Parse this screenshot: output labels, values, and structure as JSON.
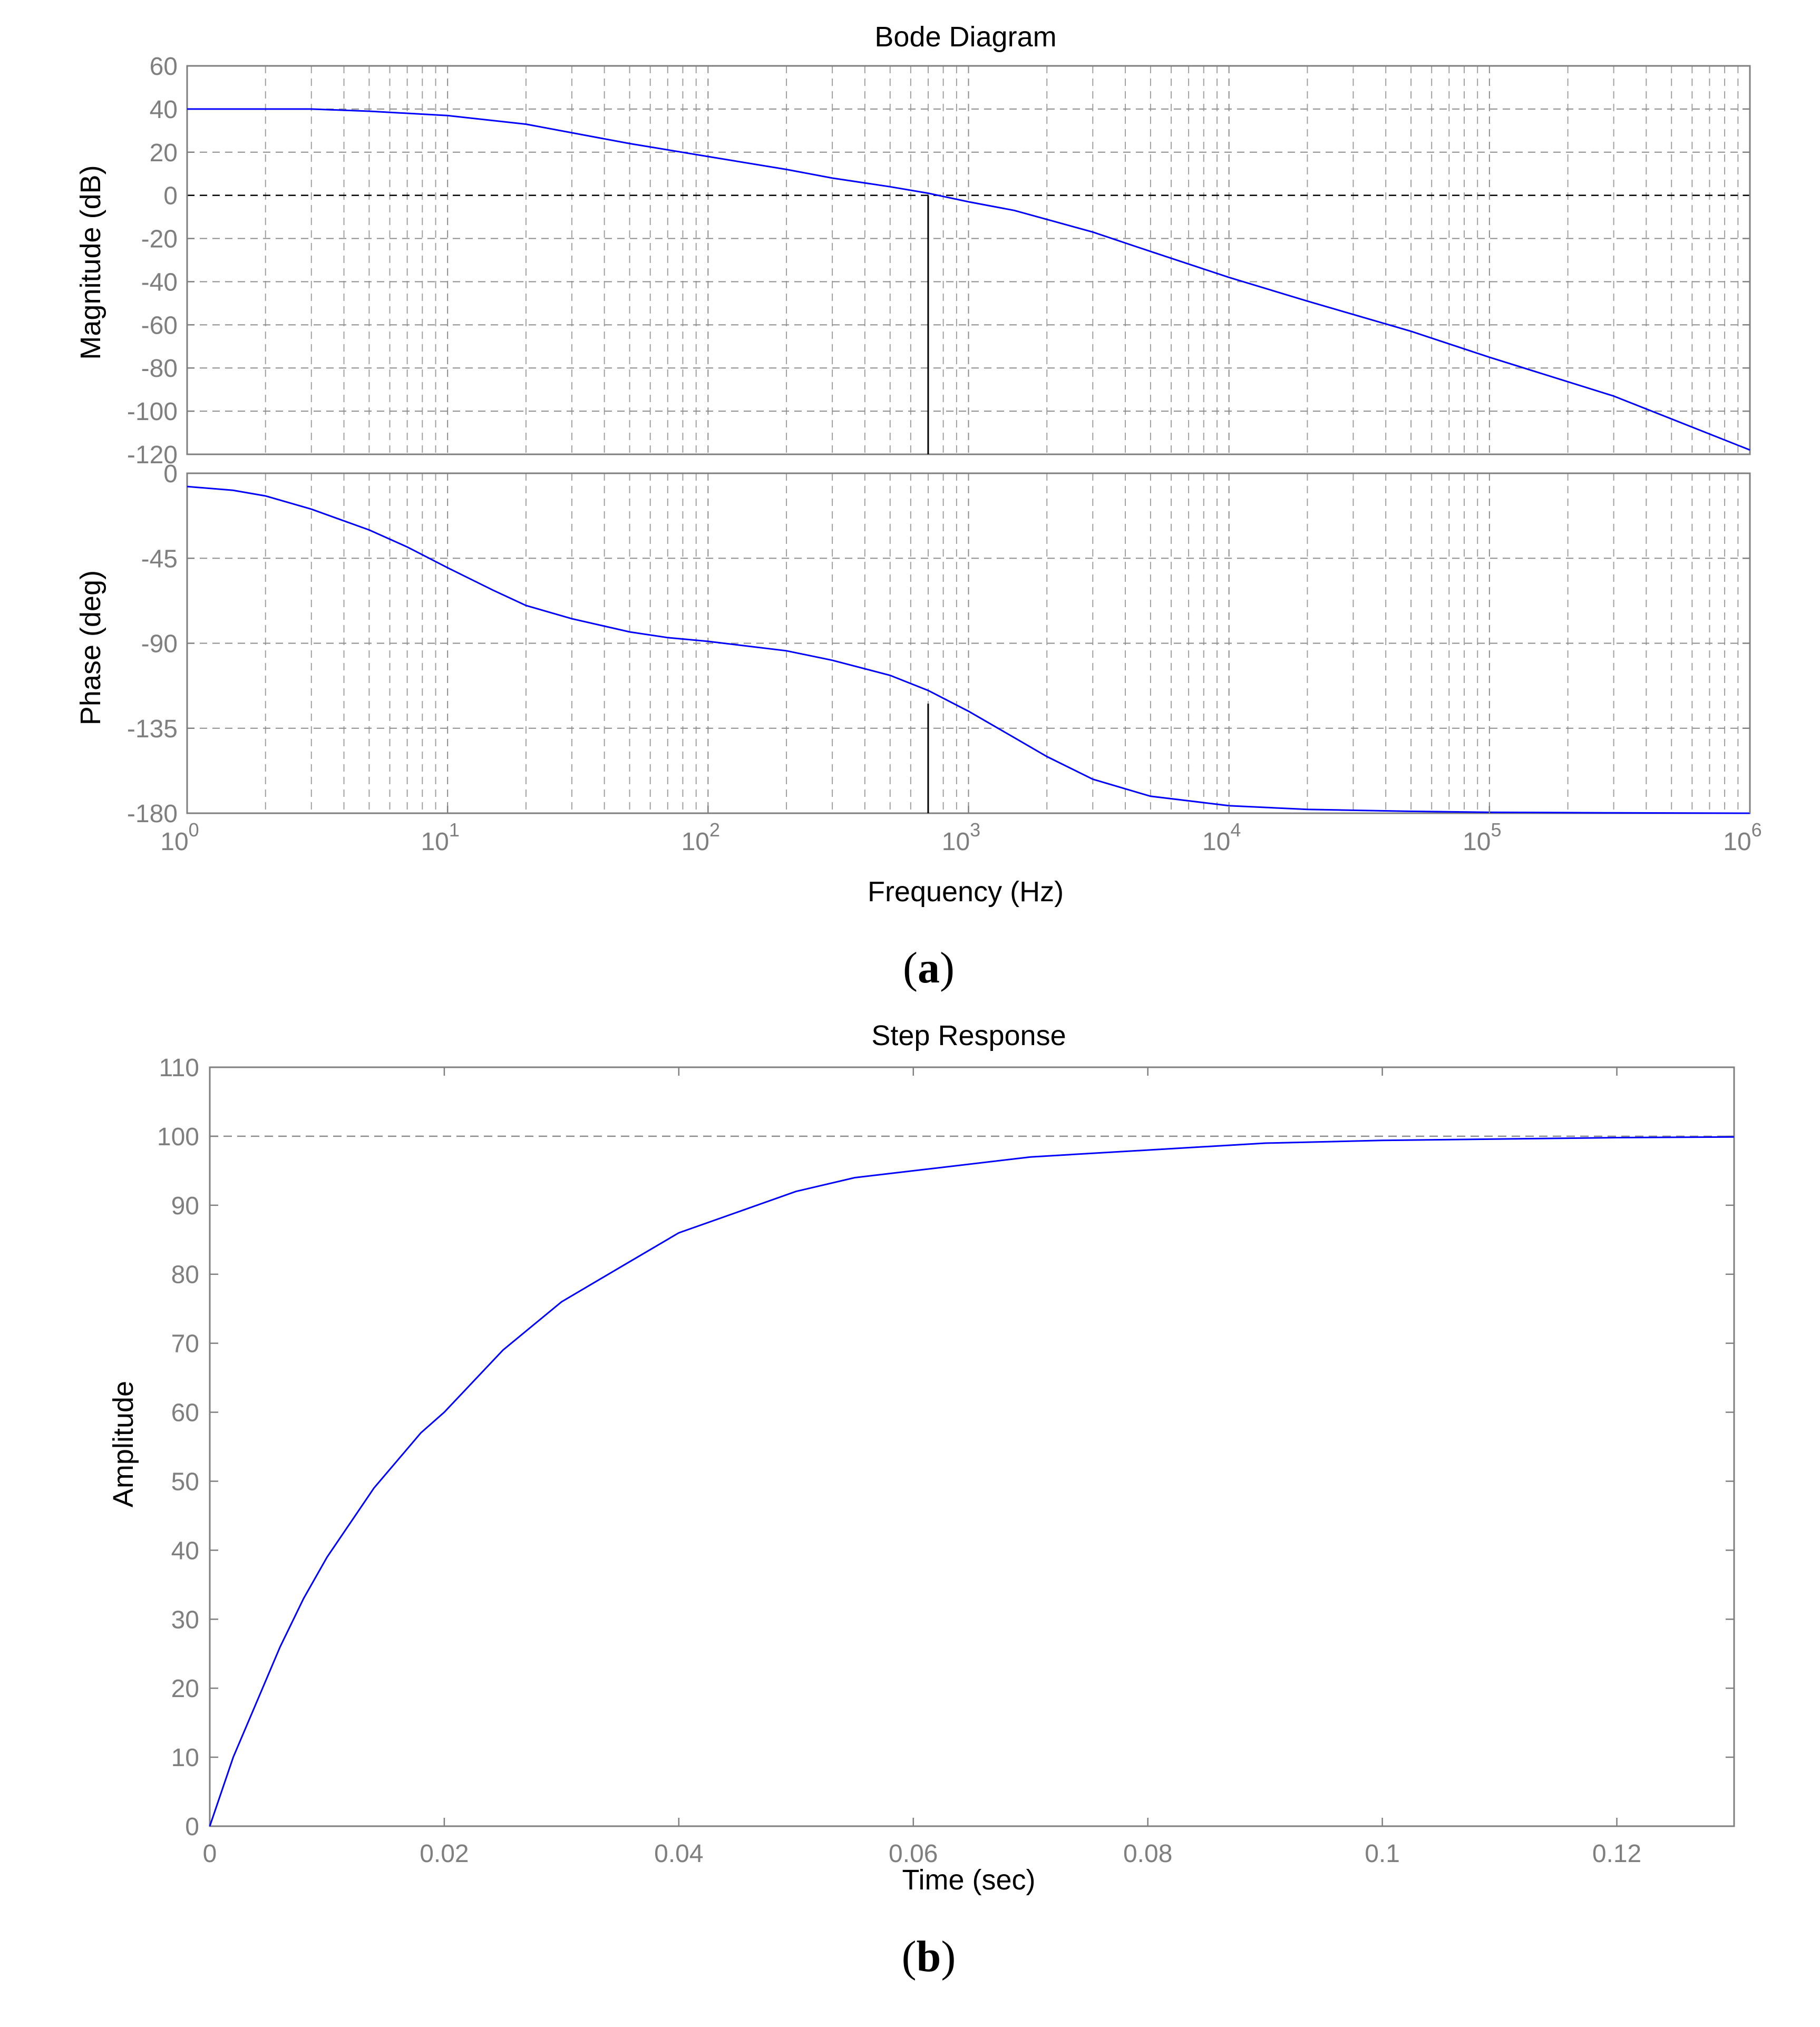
{
  "colors": {
    "series": "#0000ff",
    "axis": "#7f7f7f",
    "grid": "#8c8c8c",
    "text": "#000000",
    "background": "#ffffff"
  },
  "panels": {
    "a_letter": "a",
    "b_letter": "b"
  },
  "chart_data": [
    {
      "type": "line",
      "title": "Bode Diagram",
      "panel": "magnitude",
      "xscale": "log",
      "xlabel": "Frequency  (Hz)",
      "ylabel": "Magnitude (dB)",
      "xlim": [
        1,
        1000000
      ],
      "ylim": [
        -120,
        60
      ],
      "yticks": [
        -120,
        -100,
        -80,
        -60,
        -40,
        -20,
        0,
        20,
        40,
        60
      ],
      "ytick_labels": [
        "-120",
        "-100",
        "-80",
        "-60",
        "-40",
        "-20",
        "0",
        "20",
        "40",
        "60"
      ],
      "grid": true,
      "reference_line_y": 0,
      "crossover_frequency": 700,
      "x": [
        1,
        2,
        3,
        5,
        10,
        20,
        30,
        50,
        100,
        200,
        300,
        500,
        700,
        1000,
        1500,
        3000,
        5000,
        10000,
        20000,
        50000,
        100000,
        300000,
        1000000
      ],
      "y": [
        40,
        40,
        40,
        39,
        37,
        33,
        29,
        24,
        18,
        12,
        8,
        4,
        1,
        -3,
        -7,
        -17,
        -26,
        -38,
        -49,
        -63,
        -75,
        -93,
        -118
      ]
    },
    {
      "type": "line",
      "panel": "phase",
      "xscale": "log",
      "xlabel": "Frequency  (Hz)",
      "ylabel": "Phase (deg)",
      "xlim": [
        1,
        1000000
      ],
      "ylim": [
        -180,
        0
      ],
      "yticks": [
        -180,
        -135,
        -90,
        -45,
        0
      ],
      "ytick_labels": [
        "-180",
        "-135",
        "-90",
        "-45",
        "0"
      ],
      "xticks": [
        1,
        10,
        100,
        1000,
        10000,
        100000,
        1000000
      ],
      "xtick_exponents": [
        "0",
        "1",
        "2",
        "3",
        "4",
        "5",
        "6"
      ],
      "xtick_base": "10",
      "grid": true,
      "reference_line_y": -180,
      "crossover_frequency": 700,
      "x": [
        1,
        1.5,
        2,
        3,
        5,
        7,
        10,
        15,
        20,
        30,
        50,
        70,
        100,
        200,
        300,
        500,
        700,
        1000,
        1500,
        2000,
        3000,
        5000,
        10000,
        20000,
        50000,
        100000,
        300000,
        1000000
      ],
      "y": [
        -7,
        -9,
        -12,
        -19,
        -30,
        -39,
        -50,
        -62,
        -70,
        -77,
        -84,
        -87,
        -89,
        -94,
        -99,
        -107,
        -115,
        -126,
        -140,
        -150,
        -162,
        -171,
        -176,
        -178,
        -179,
        -179.5,
        -179.8,
        -180
      ]
    },
    {
      "type": "line",
      "title": "Step Response",
      "xlabel": "Time (sec)",
      "ylabel": "Amplitude",
      "xlim": [
        0,
        0.13
      ],
      "ylim": [
        0,
        110
      ],
      "xticks": [
        0,
        0.02,
        0.04,
        0.06,
        0.08,
        0.1,
        0.12
      ],
      "xtick_labels": [
        "0",
        "0.02",
        "0.04",
        "0.06",
        "0.08",
        "0.1",
        "0.12"
      ],
      "yticks": [
        0,
        10,
        20,
        30,
        40,
        50,
        60,
        70,
        80,
        90,
        100,
        110
      ],
      "ytick_labels": [
        "0",
        "10",
        "20",
        "30",
        "40",
        "50",
        "60",
        "70",
        "80",
        "90",
        "100",
        "110"
      ],
      "grid": false,
      "reference_line_y": 100,
      "x": [
        0,
        0.002,
        0.004,
        0.006,
        0.008,
        0.01,
        0.012,
        0.014,
        0.016,
        0.018,
        0.02,
        0.025,
        0.03,
        0.035,
        0.04,
        0.045,
        0.05,
        0.055,
        0.06,
        0.07,
        0.08,
        0.09,
        0.1,
        0.11,
        0.12,
        0.13
      ],
      "y": [
        0,
        10,
        18,
        26,
        33,
        39,
        44,
        49,
        53,
        57,
        60,
        69,
        76,
        81,
        86,
        89,
        92,
        94,
        95,
        97,
        98,
        99,
        99.4,
        99.6,
        99.8,
        99.9
      ]
    }
  ]
}
